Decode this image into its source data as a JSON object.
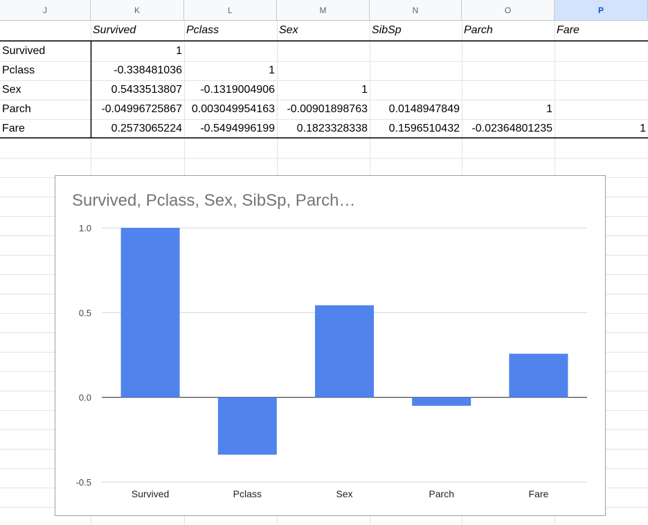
{
  "columns": [
    {
      "letter": "J"
    },
    {
      "letter": "K"
    },
    {
      "letter": "L"
    },
    {
      "letter": "M"
    },
    {
      "letter": "N"
    },
    {
      "letter": "O"
    },
    {
      "letter": "P"
    }
  ],
  "header_row": [
    "",
    "Survived",
    "Pclass",
    "Sex",
    "SibSp",
    "Parch",
    "Fare"
  ],
  "rows": [
    [
      "Survived",
      "1",
      "",
      "",
      "",
      "",
      ""
    ],
    [
      "Pclass",
      "-0.338481036",
      "1",
      "",
      "",
      "",
      ""
    ],
    [
      "Sex",
      "0.5433513807",
      "-0.1319004906",
      "1",
      "",
      "",
      ""
    ],
    [
      "Parch",
      "-0.04996725867",
      "0.003049954163",
      "-0.00901898763",
      "0.0148947849",
      "1",
      ""
    ],
    [
      "Fare",
      "0.2573065224",
      "-0.5494996199",
      "0.1823328338",
      "0.1596510432",
      "-0.02364801235",
      "1"
    ]
  ],
  "colors": {
    "bar": "#5083ec",
    "selected_header": "#d3e3fd"
  },
  "chart_data": {
    "type": "bar",
    "title": "Survived, Pclass, Sex, SibSp, Parch…",
    "categories": [
      "Survived",
      "Pclass",
      "Sex",
      "Parch",
      "Fare"
    ],
    "values": [
      1.0,
      -0.338481036,
      0.5433513807,
      -0.04996725867,
      0.2573065224
    ],
    "ylim": [
      -0.5,
      1.0
    ],
    "yticks": [
      "1.0",
      "0.5",
      "0.0",
      "-0.5"
    ],
    "ytick_values": [
      1.0,
      0.5,
      0.0,
      -0.5
    ],
    "grid": true,
    "xlabel": "",
    "ylabel": ""
  }
}
